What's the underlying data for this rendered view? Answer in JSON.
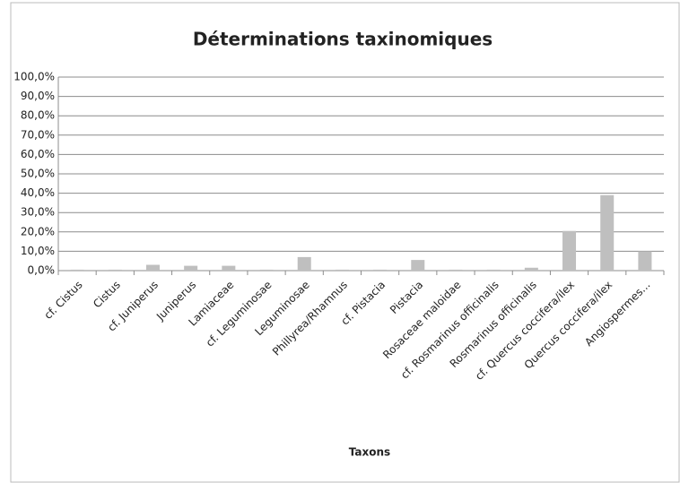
{
  "chart_data": {
    "type": "bar",
    "title": "Déterminations taxinomiques",
    "x_label": "Taxons",
    "categories": [
      "cf. Cistus",
      "Cistus",
      "cf. Juniperus",
      "Juniperus",
      "Lamiaceae",
      "cf. Leguminosae",
      "Leguminosae",
      "Phillyrea/Rhamnus",
      "cf. Pistacia",
      "Pistacia",
      "Rosaceae maloidae",
      "cf. Rosmarinus  officinalis",
      "Rosmarinus officinalis",
      "cf. Quercus coccifera/ilex",
      "Quercus coccifera/ilex",
      "Angiospermes..."
    ],
    "values": [
      0.5,
      0.5,
      3,
      2.5,
      2.5,
      0.5,
      7,
      0.5,
      0.5,
      5.5,
      0.5,
      0.5,
      1.5,
      20.5,
      39,
      10
    ],
    "color": "#bfbfbf",
    "ylim": [
      0,
      100
    ],
    "yticks": [
      {
        "value": 0,
        "label": "0,0%"
      },
      {
        "value": 10,
        "label": "10,0%"
      },
      {
        "value": 20,
        "label": "20,0%"
      },
      {
        "value": 30,
        "label": "30,0%"
      },
      {
        "value": 40,
        "label": "40,0%"
      },
      {
        "value": 50,
        "label": "50,0%"
      },
      {
        "value": 60,
        "label": "60,0%"
      },
      {
        "value": 70,
        "label": "70,0%"
      },
      {
        "value": 80,
        "label": "80,0%"
      },
      {
        "value": 90,
        "label": "90,0%"
      },
      {
        "value": 100,
        "label": "100,0%"
      }
    ],
    "grid": true
  }
}
